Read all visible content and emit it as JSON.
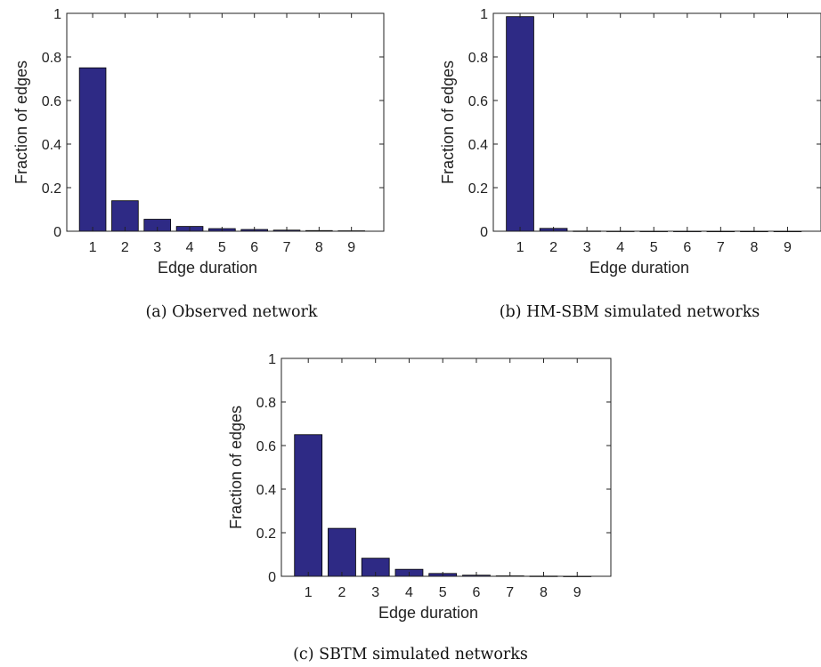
{
  "colors": {
    "bar": "#2e2a85",
    "axis": "#222222"
  },
  "chart_data": [
    {
      "type": "bar",
      "caption": "(a) Observed network",
      "xlabel": "Edge duration",
      "ylabel": "Fraction of edges",
      "categories": [
        "1",
        "2",
        "3",
        "4",
        "5",
        "6",
        "7",
        "8",
        "9"
      ],
      "values": [
        0.75,
        0.14,
        0.055,
        0.022,
        0.012,
        0.008,
        0.005,
        0.003,
        0.002
      ],
      "ylim": [
        0,
        1
      ],
      "yticks": [
        "0",
        "0.2",
        "0.4",
        "0.6",
        "0.8",
        "1"
      ],
      "grid": false,
      "box": true
    },
    {
      "type": "bar",
      "caption": "(b) HM-SBM simulated networks",
      "xlabel": "Edge duration",
      "ylabel": "Fraction of edges",
      "categories": [
        "1",
        "2",
        "3",
        "4",
        "5",
        "6",
        "7",
        "8",
        "9"
      ],
      "values": [
        0.985,
        0.013,
        0.001,
        0.0005,
        0.0003,
        0.0002,
        0.0001,
        0.0001,
        0.0001
      ],
      "ylim": [
        0,
        1
      ],
      "yticks": [
        "0",
        "0.2",
        "0.4",
        "0.6",
        "0.8",
        "1"
      ],
      "grid": false,
      "box": true
    },
    {
      "type": "bar",
      "caption": "(c) SBTM simulated networks",
      "xlabel": "Edge duration",
      "ylabel": "Fraction of edges",
      "categories": [
        "1",
        "2",
        "3",
        "4",
        "5",
        "6",
        "7",
        "8",
        "9"
      ],
      "values": [
        0.65,
        0.22,
        0.083,
        0.032,
        0.013,
        0.005,
        0.002,
        0.001,
        0.0005
      ],
      "ylim": [
        0,
        1
      ],
      "yticks": [
        "0",
        "0.2",
        "0.4",
        "0.6",
        "0.8",
        "1"
      ],
      "grid": false,
      "box": true
    }
  ]
}
